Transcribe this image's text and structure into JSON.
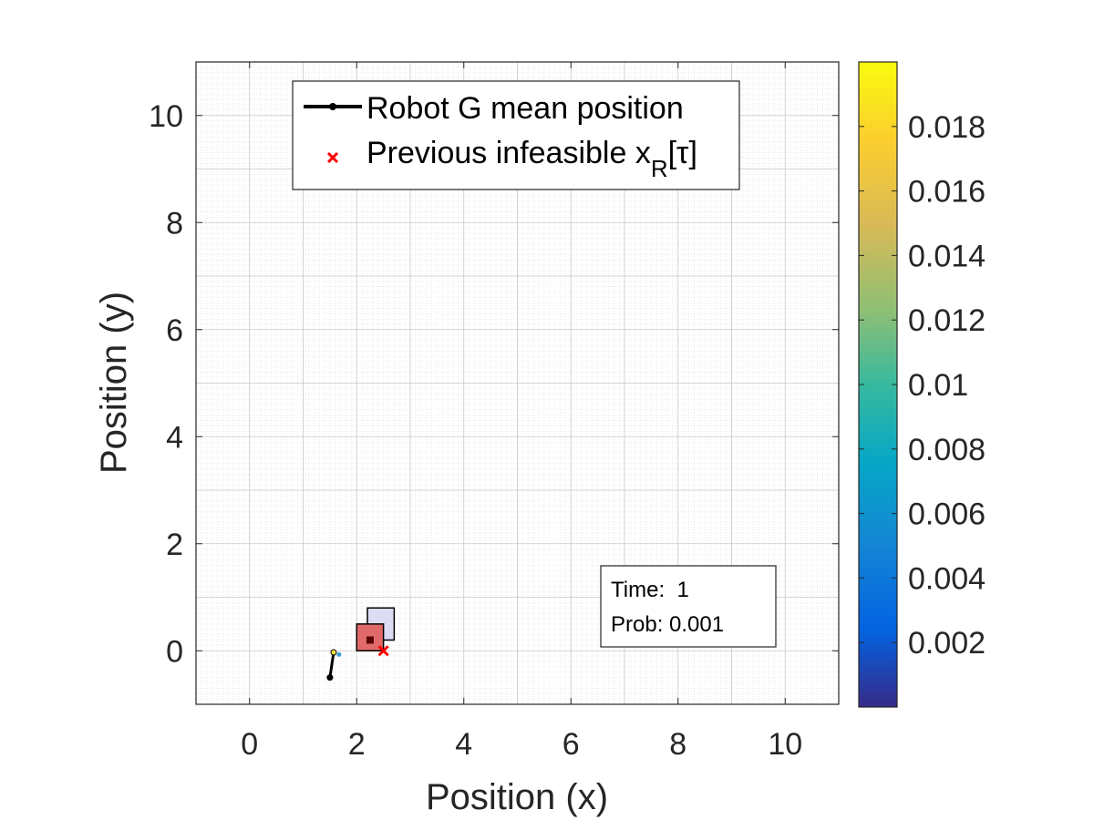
{
  "chart_data": {
    "type": "scatter",
    "xlabel": "Position (x)",
    "ylabel": "Position (y)",
    "xlim": [
      -1,
      11
    ],
    "ylim": [
      -1,
      11
    ],
    "xticks": [
      0,
      2,
      4,
      6,
      8,
      10
    ],
    "yticks": [
      0,
      2,
      4,
      6,
      8,
      10
    ],
    "xtick_labels": [
      "0",
      "2",
      "4",
      "6",
      "8",
      "10"
    ],
    "ytick_labels": [
      "0",
      "2",
      "4",
      "6",
      "8",
      "10"
    ],
    "grid": true,
    "minor_grid": true,
    "legend_position": "top-center",
    "legend": [
      {
        "label": "Robot G mean position",
        "marker": "line-with-dot",
        "color": "#000000"
      },
      {
        "label_main": "Previous infeasible x",
        "label_sub": "R",
        "label_tail": "[τ]",
        "marker": "x",
        "color": "#ff0000"
      }
    ],
    "series": [
      {
        "name": "Robot G mean position",
        "type": "line",
        "color": "#000000",
        "x": [
          1.5,
          1.57
        ],
        "y": [
          -0.5,
          -0.03
        ]
      },
      {
        "name": "Previous infeasible x_R[τ]",
        "type": "scatter",
        "marker": "x",
        "color": "#ff0000",
        "x": [
          2.5
        ],
        "y": [
          0.0
        ]
      }
    ],
    "regions": [
      {
        "kind": "square",
        "x": [
          2.2,
          2.7
        ],
        "y": [
          0.2,
          0.8
        ],
        "fill": "#dcdcf5",
        "stroke": "#000000"
      },
      {
        "kind": "square",
        "x": [
          2.0,
          2.5
        ],
        "y": [
          0.0,
          0.5
        ],
        "fill": "#e06a6a",
        "stroke": "#000000"
      }
    ],
    "extra_markers": [
      {
        "kind": "square",
        "x": 2.25,
        "y": 0.2,
        "color": "#5a0000"
      },
      {
        "kind": "dot",
        "x": 1.57,
        "y": -0.03,
        "color": "#f0e040"
      },
      {
        "kind": "dot",
        "x": 1.67,
        "y": -0.07,
        "color": "#3a9ad9"
      }
    ],
    "colorbar": {
      "colormap": "parula",
      "range": [
        0,
        0.02
      ],
      "ticks": [
        0.002,
        0.004,
        0.006,
        0.008,
        0.01,
        0.012,
        0.014,
        0.016,
        0.018
      ],
      "tick_labels": [
        "0.002",
        "0.004",
        "0.006",
        "0.008",
        "0.01",
        "0.012",
        "0.014",
        "0.016",
        "0.018"
      ]
    },
    "annotation": {
      "line1": "Time:  1",
      "line2": "Prob: 0.001"
    }
  }
}
